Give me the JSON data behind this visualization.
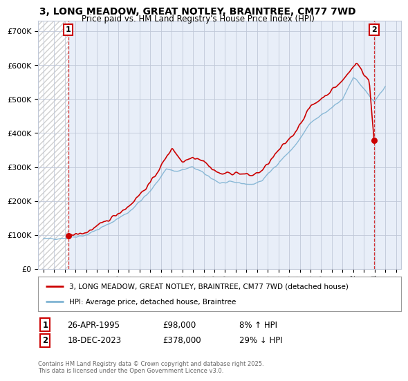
{
  "title": "3, LONG MEADOW, GREAT NOTLEY, BRAINTREE, CM77 7WD",
  "subtitle": "Price paid vs. HM Land Registry's House Price Index (HPI)",
  "legend_line1": "3, LONG MEADOW, GREAT NOTLEY, BRAINTREE, CM77 7WD (detached house)",
  "legend_line2": "HPI: Average price, detached house, Braintree",
  "annotation1_date": "26-APR-1995",
  "annotation1_price": "£98,000",
  "annotation1_hpi": "8% ↑ HPI",
  "annotation1_year": 1995.32,
  "annotation1_value": 98000,
  "annotation2_date": "18-DEC-2023",
  "annotation2_price": "£378,000",
  "annotation2_hpi": "29% ↓ HPI",
  "annotation2_year": 2023.96,
  "annotation2_value": 378000,
  "ylabel_ticks": [
    "£0",
    "£100K",
    "£200K",
    "£300K",
    "£400K",
    "£500K",
    "£600K",
    "£700K"
  ],
  "ytick_values": [
    0,
    100000,
    200000,
    300000,
    400000,
    500000,
    600000,
    700000
  ],
  "ylim": [
    0,
    730000
  ],
  "xlim_start": 1992.5,
  "xlim_end": 2026.5,
  "xlabel_years": [
    1993,
    1994,
    1995,
    1996,
    1997,
    1998,
    1999,
    2000,
    2001,
    2002,
    2003,
    2004,
    2005,
    2006,
    2007,
    2008,
    2009,
    2010,
    2011,
    2012,
    2013,
    2014,
    2015,
    2016,
    2017,
    2018,
    2019,
    2020,
    2021,
    2022,
    2023,
    2024,
    2025,
    2026
  ],
  "price_paid_color": "#cc0000",
  "hpi_color": "#7fb3d3",
  "background_color": "#ffffff",
  "plot_bg_color": "#e8eef8",
  "grid_color": "#c0c8d8",
  "hatch_color": "#bbbbbb",
  "footer_text": "Contains HM Land Registry data © Crown copyright and database right 2025.\nThis data is licensed under the Open Government Licence v3.0."
}
